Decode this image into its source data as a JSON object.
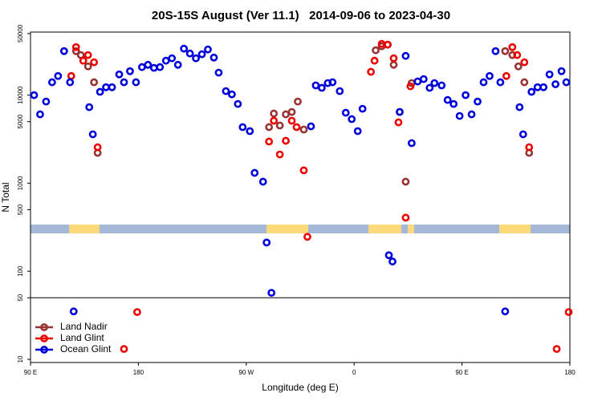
{
  "chart_data": {
    "type": "scatter",
    "title": "20S-15S August (Ver 11.1)   2014-09-06 to 2023-04-30",
    "xlabel": "Longitude (deg E)",
    "ylabel": "N Total",
    "xlim": [
      90,
      540
    ],
    "ylim": [
      9.2,
      52000
    ],
    "yscale": "log",
    "xticks": [
      {
        "value": 90,
        "label": "90 E"
      },
      180,
      {
        "value": 270,
        "label": "90 W"
      },
      {
        "value": 360,
        "label": "0"
      },
      {
        "value": 450,
        "label": "90 E"
      },
      {
        "value": 540,
        "label": "180"
      }
    ],
    "yticks": [
      10,
      50,
      100,
      500,
      1000,
      5000,
      10000,
      50000
    ],
    "hline": 50,
    "legend": "lower left",
    "series": [
      {
        "name": "Land Nadir",
        "color": "#993333",
        "x": [
          128,
          132,
          138,
          143,
          146,
          289,
          293,
          298,
          303,
          308,
          313,
          318,
          378,
          383,
          388,
          393,
          398,
          403,
          408,
          486,
          492,
          497,
          502,
          506
        ],
        "values": [
          31600,
          28500,
          21200,
          14000,
          2210,
          4330,
          6180,
          4520,
          6050,
          6440,
          8450,
          4070,
          32300,
          35900,
          37400,
          22100,
          6440,
          1040,
          13700,
          31600,
          28500,
          21200,
          14000,
          2210
        ]
      },
      {
        "name": "Land Glint",
        "color": "#ee0000",
        "x": [
          124,
          128,
          134,
          138,
          143,
          146,
          179,
          168,
          289,
          293,
          298,
          303,
          308,
          312,
          318,
          321,
          374,
          377,
          383,
          388,
          393,
          397,
          403,
          407,
          487,
          492,
          496,
          502,
          506,
          529,
          539
        ],
        "values": [
          16500,
          35100,
          24600,
          28500,
          23600,
          2560,
          34.4,
          13.1,
          2970,
          5120,
          2120,
          3030,
          5120,
          4330,
          1400,
          246,
          18400,
          24600,
          38200,
          37400,
          26200,
          4910,
          406,
          12600,
          16500,
          35100,
          28500,
          23600,
          2560,
          13.1,
          34.4
        ]
      },
      {
        "name": "Ocean Glint",
        "color": "#0000dd",
        "x": [
          93,
          98,
          103,
          108,
          113,
          118,
          123,
          139,
          142,
          148,
          153,
          158,
          164,
          168,
          173,
          178,
          183,
          188,
          193,
          198,
          203,
          208,
          213,
          218,
          223,
          228,
          233,
          238,
          243,
          247,
          253,
          258,
          263,
          267,
          273,
          277,
          284,
          287,
          291,
          324,
          328,
          333,
          338,
          342,
          348,
          353,
          358,
          363,
          367,
          389,
          392,
          398,
          403,
          408,
          413,
          418,
          423,
          427,
          433,
          438,
          443,
          448,
          453,
          458,
          463,
          468,
          473,
          478,
          482,
          498,
          501,
          508,
          513,
          518,
          523,
          528,
          533,
          537,
          126,
          486
        ],
        "values": [
          10000,
          6050,
          8450,
          14000,
          16500,
          31600,
          14000,
          7300,
          3590,
          10900,
          12300,
          12300,
          17200,
          14000,
          18700,
          14000,
          20800,
          22100,
          20400,
          20800,
          24600,
          26200,
          22100,
          33700,
          29700,
          26200,
          29100,
          33000,
          26700,
          18000,
          11100,
          10200,
          7940,
          4330,
          3900,
          1310,
          1040,
          212,
          56.9,
          4420,
          12900,
          12100,
          13700,
          14000,
          11100,
          6310,
          5340,
          3900,
          7000,
          152,
          129,
          6440,
          27900,
          2850,
          14300,
          15200,
          12100,
          13700,
          12900,
          8810,
          7940,
          5800,
          10000,
          6050,
          8450,
          14000,
          16500,
          31600,
          14000,
          7300,
          3590,
          10900,
          12300,
          12300,
          17200,
          13300,
          18700,
          14000,
          35,
          35
        ]
      }
    ]
  }
}
